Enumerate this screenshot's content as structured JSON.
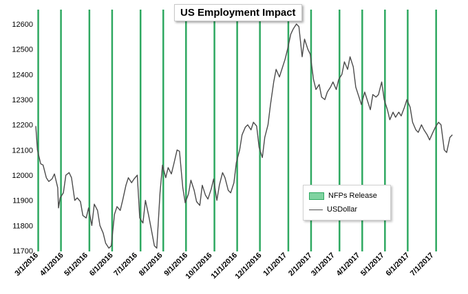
{
  "chart_data": {
    "type": "line",
    "title": "US Employment Impact",
    "ylim": [
      11700,
      12600
    ],
    "yticks": [
      11700,
      11800,
      11900,
      12000,
      12100,
      12200,
      12300,
      12400,
      12500,
      12600
    ],
    "grid": false,
    "legend_position": "bottom-right",
    "x_tick_labels": [
      "3/1/2016",
      "4/1/2016",
      "5/1/2016",
      "6/1/2016",
      "7/1/2016",
      "8/1/2016",
      "9/1/2016",
      "10/1/2016",
      "11/1/2016",
      "12/1/2016",
      "1/1/2017",
      "2/1/2017",
      "3/1/2017",
      "4/1/2017",
      "5/1/2017",
      "6/1/2017",
      "7/1/2017"
    ],
    "nfp_release_dates": [
      "3/4/2016",
      "4/1/2016",
      "5/6/2016",
      "6/3/2016",
      "7/8/2016",
      "8/5/2016",
      "9/2/2016",
      "10/7/2016",
      "11/4/2016",
      "12/2/2016",
      "1/6/2017",
      "2/3/2017",
      "3/10/2017",
      "4/7/2017",
      "5/5/2017",
      "6/2/2017",
      "7/7/2017"
    ],
    "nfp_color": "#2ea860",
    "line_color": "#4a4a4a",
    "series": [
      {
        "name": "USDollar",
        "points": [
          [
            "3/1/2016",
            12195
          ],
          [
            "3/3/2016",
            12100
          ],
          [
            "3/7/2016",
            12045
          ],
          [
            "3/10/2016",
            12040
          ],
          [
            "3/14/2016",
            11990
          ],
          [
            "3/17/2016",
            11975
          ],
          [
            "3/21/2016",
            11985
          ],
          [
            "3/24/2016",
            12005
          ],
          [
            "3/28/2016",
            11950
          ],
          [
            "3/29/2016",
            11870
          ],
          [
            "3/31/2016",
            11910
          ],
          [
            "4/4/2016",
            11930
          ],
          [
            "4/7/2016",
            12000
          ],
          [
            "4/11/2016",
            12010
          ],
          [
            "4/14/2016",
            11990
          ],
          [
            "4/18/2016",
            11900
          ],
          [
            "4/21/2016",
            11910
          ],
          [
            "4/25/2016",
            11895
          ],
          [
            "4/28/2016",
            11840
          ],
          [
            "5/2/2016",
            11830
          ],
          [
            "5/5/2016",
            11870
          ],
          [
            "5/9/2016",
            11800
          ],
          [
            "5/12/2016",
            11885
          ],
          [
            "5/16/2016",
            11860
          ],
          [
            "5/19/2016",
            11800
          ],
          [
            "5/23/2016",
            11770
          ],
          [
            "5/26/2016",
            11730
          ],
          [
            "5/30/2016",
            11710
          ],
          [
            "6/2/2016",
            11720
          ],
          [
            "6/6/2016",
            11845
          ],
          [
            "6/9/2016",
            11875
          ],
          [
            "6/13/2016",
            11860
          ],
          [
            "6/16/2016",
            11900
          ],
          [
            "6/20/2016",
            11960
          ],
          [
            "6/23/2016",
            11990
          ],
          [
            "6/27/2016",
            11970
          ],
          [
            "6/30/2016",
            11985
          ],
          [
            "7/4/2016",
            12000
          ],
          [
            "7/7/2016",
            11830
          ],
          [
            "7/11/2016",
            11810
          ],
          [
            "7/14/2016",
            11900
          ],
          [
            "7/18/2016",
            11840
          ],
          [
            "7/21/2016",
            11790
          ],
          [
            "7/25/2016",
            11720
          ],
          [
            "7/28/2016",
            11710
          ],
          [
            "8/1/2016",
            11930
          ],
          [
            "8/4/2016",
            12040
          ],
          [
            "8/8/2016",
            11990
          ],
          [
            "8/11/2016",
            12030
          ],
          [
            "8/15/2016",
            12005
          ],
          [
            "8/18/2016",
            12045
          ],
          [
            "8/22/2016",
            12100
          ],
          [
            "8/25/2016",
            12095
          ],
          [
            "8/29/2016",
            11950
          ],
          [
            "9/1/2016",
            11890
          ],
          [
            "9/5/2016",
            11925
          ],
          [
            "9/8/2016",
            11980
          ],
          [
            "9/12/2016",
            11940
          ],
          [
            "9/15/2016",
            11895
          ],
          [
            "9/19/2016",
            11880
          ],
          [
            "9/22/2016",
            11960
          ],
          [
            "9/26/2016",
            11920
          ],
          [
            "9/29/2016",
            11905
          ],
          [
            "10/3/2016",
            11945
          ],
          [
            "10/6/2016",
            11985
          ],
          [
            "10/10/2016",
            11900
          ],
          [
            "10/13/2016",
            11960
          ],
          [
            "10/17/2016",
            12010
          ],
          [
            "10/20/2016",
            11990
          ],
          [
            "10/24/2016",
            11940
          ],
          [
            "10/27/2016",
            11930
          ],
          [
            "10/31/2016",
            11970
          ],
          [
            "11/3/2016",
            12050
          ],
          [
            "11/7/2016",
            12100
          ],
          [
            "11/10/2016",
            12160
          ],
          [
            "11/14/2016",
            12190
          ],
          [
            "11/17/2016",
            12200
          ],
          [
            "11/21/2016",
            12180
          ],
          [
            "11/24/2016",
            12210
          ],
          [
            "11/28/2016",
            12195
          ],
          [
            "12/1/2016",
            12110
          ],
          [
            "12/5/2016",
            12070
          ],
          [
            "12/8/2016",
            12150
          ],
          [
            "12/12/2016",
            12200
          ],
          [
            "12/15/2016",
            12280
          ],
          [
            "12/19/2016",
            12370
          ],
          [
            "12/22/2016",
            12420
          ],
          [
            "12/26/2016",
            12390
          ],
          [
            "12/29/2016",
            12420
          ],
          [
            "1/2/2017",
            12460
          ],
          [
            "1/5/2017",
            12500
          ],
          [
            "1/9/2017",
            12560
          ],
          [
            "1/12/2017",
            12580
          ],
          [
            "1/16/2017",
            12600
          ],
          [
            "1/19/2017",
            12590
          ],
          [
            "1/23/2017",
            12470
          ],
          [
            "1/26/2017",
            12540
          ],
          [
            "1/30/2017",
            12500
          ],
          [
            "2/2/2017",
            12480
          ],
          [
            "2/6/2017",
            12380
          ],
          [
            "2/9/2017",
            12340
          ],
          [
            "2/13/2017",
            12360
          ],
          [
            "2/16/2017",
            12310
          ],
          [
            "2/20/2017",
            12300
          ],
          [
            "2/23/2017",
            12330
          ],
          [
            "2/27/2017",
            12350
          ],
          [
            "3/2/2017",
            12370
          ],
          [
            "3/6/2017",
            12340
          ],
          [
            "3/9/2017",
            12380
          ],
          [
            "3/13/2017",
            12400
          ],
          [
            "3/16/2017",
            12450
          ],
          [
            "3/20/2017",
            12420
          ],
          [
            "3/23/2017",
            12470
          ],
          [
            "3/27/2017",
            12430
          ],
          [
            "3/30/2017",
            12350
          ],
          [
            "4/3/2017",
            12310
          ],
          [
            "4/6/2017",
            12280
          ],
          [
            "4/10/2017",
            12330
          ],
          [
            "4/13/2017",
            12300
          ],
          [
            "4/17/2017",
            12260
          ],
          [
            "4/20/2017",
            12320
          ],
          [
            "4/24/2017",
            12310
          ],
          [
            "4/27/2017",
            12320
          ],
          [
            "5/1/2017",
            12370
          ],
          [
            "5/4/2017",
            12300
          ],
          [
            "5/8/2017",
            12260
          ],
          [
            "5/11/2017",
            12220
          ],
          [
            "5/15/2017",
            12250
          ],
          [
            "5/18/2017",
            12230
          ],
          [
            "5/22/2017",
            12250
          ],
          [
            "5/25/2017",
            12235
          ],
          [
            "5/29/2017",
            12270
          ],
          [
            "6/1/2017",
            12300
          ],
          [
            "6/5/2017",
            12270
          ],
          [
            "6/8/2017",
            12210
          ],
          [
            "6/12/2017",
            12180
          ],
          [
            "6/15/2017",
            12170
          ],
          [
            "6/19/2017",
            12200
          ],
          [
            "6/22/2017",
            12180
          ],
          [
            "6/26/2017",
            12160
          ],
          [
            "6/29/2017",
            12140
          ],
          [
            "7/3/2017",
            12170
          ],
          [
            "7/6/2017",
            12190
          ],
          [
            "7/10/2017",
            12210
          ],
          [
            "7/13/2017",
            12200
          ],
          [
            "7/17/2017",
            12100
          ],
          [
            "7/20/2017",
            12090
          ],
          [
            "7/24/2017",
            12150
          ],
          [
            "7/27/2017",
            12160
          ]
        ]
      }
    ],
    "legend": [
      {
        "label": "NFPs Release",
        "kind": "bar"
      },
      {
        "label": "USDollar",
        "kind": "line"
      }
    ]
  }
}
